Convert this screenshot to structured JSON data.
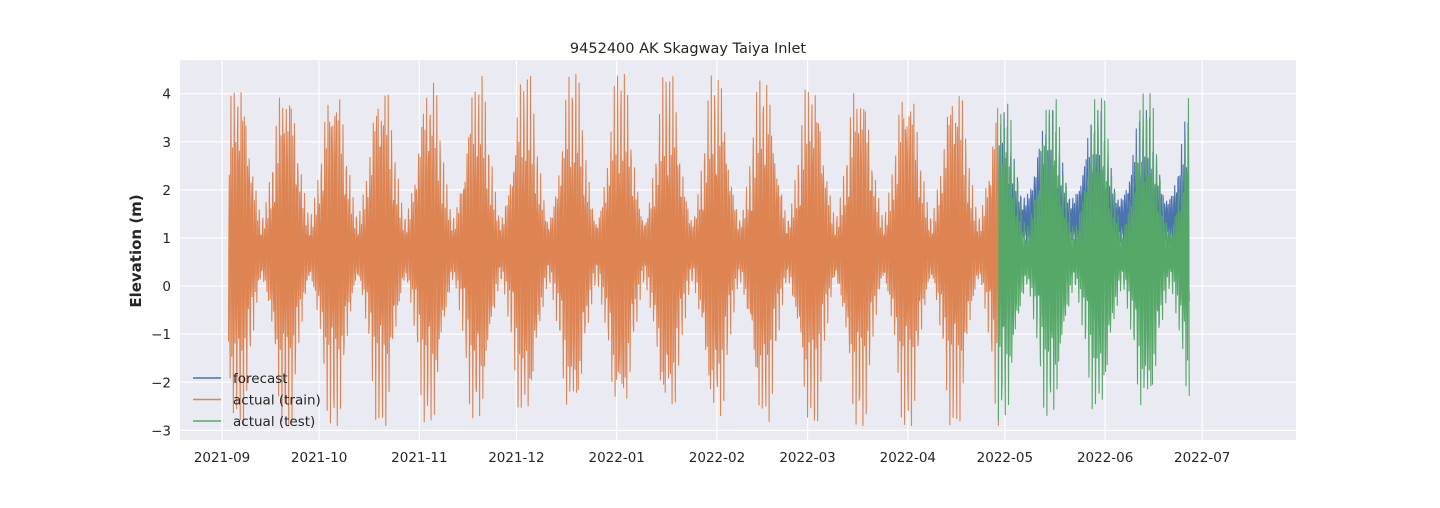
{
  "chart_data": {
    "type": "line",
    "title": "9452400 AK Skagway Taiya Inlet",
    "xlabel": "",
    "ylabel": "Elevation (m)",
    "x_tick_labels": [
      "2021-09",
      "2021-10",
      "2021-11",
      "2021-12",
      "2022-01",
      "2022-02",
      "2022-03",
      "2022-04",
      "2022-05",
      "2022-06",
      "2022-07"
    ],
    "y_tick_labels": [
      "−3",
      "−2",
      "−1",
      "0",
      "1",
      "2",
      "3",
      "4"
    ],
    "y_ticks": [
      -3,
      -2,
      -1,
      0,
      1,
      2,
      3,
      4
    ],
    "xlim": [
      "2021-08-19",
      "2022-07-30"
    ],
    "ylim": [
      -3.2,
      4.7
    ],
    "grid": true,
    "legend_position": "lower-left",
    "series": [
      {
        "name": "forecast",
        "color": "#4c72b0",
        "x_start": "2022-04-29",
        "x_end": "2022-06-27",
        "min": -0.9,
        "max": 3.65
      },
      {
        "name": "actual (train)",
        "color": "#dd8452",
        "x_start": "2021-09-03",
        "x_end": "2022-04-29",
        "min": -2.9,
        "max": 4.4
      },
      {
        "name": "actual (test)",
        "color": "#55a868",
        "x_start": "2022-04-29",
        "x_end": "2022-06-27",
        "min": -2.8,
        "max": 4.0
      }
    ]
  }
}
